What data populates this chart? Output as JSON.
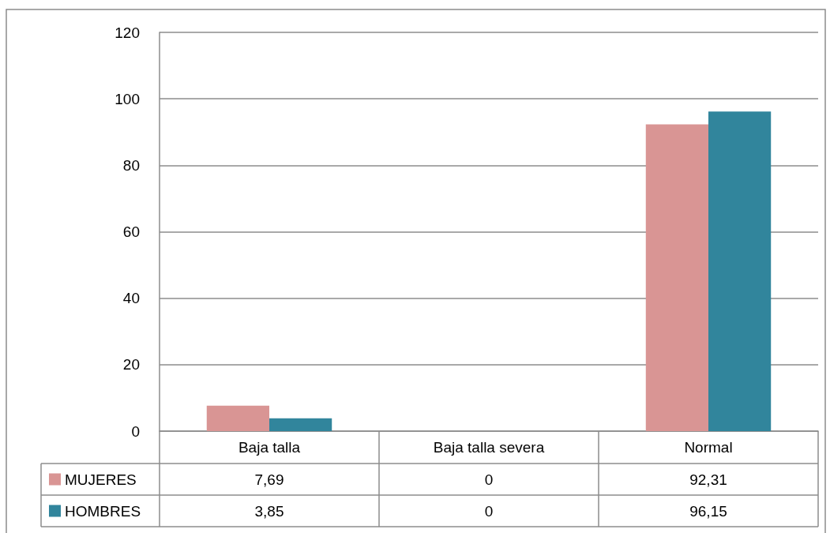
{
  "chart_data": {
    "type": "bar",
    "categories": [
      "Baja talla",
      "Baja talla severa",
      "Normal"
    ],
    "series": [
      {
        "name": "MUJERES",
        "color": "#d99594",
        "values": [
          7.69,
          0,
          92.31
        ],
        "value_labels": [
          "7,69",
          "0",
          "92,31"
        ]
      },
      {
        "name": "HOMBRES",
        "color": "#31859c",
        "values": [
          3.85,
          0,
          96.15
        ],
        "value_labels": [
          "3,85",
          "0",
          "96,15"
        ]
      }
    ],
    "ylim": [
      0,
      120
    ],
    "yticks": [
      0,
      20,
      40,
      60,
      80,
      100,
      120
    ],
    "grid": "y",
    "legend": "bottom"
  }
}
